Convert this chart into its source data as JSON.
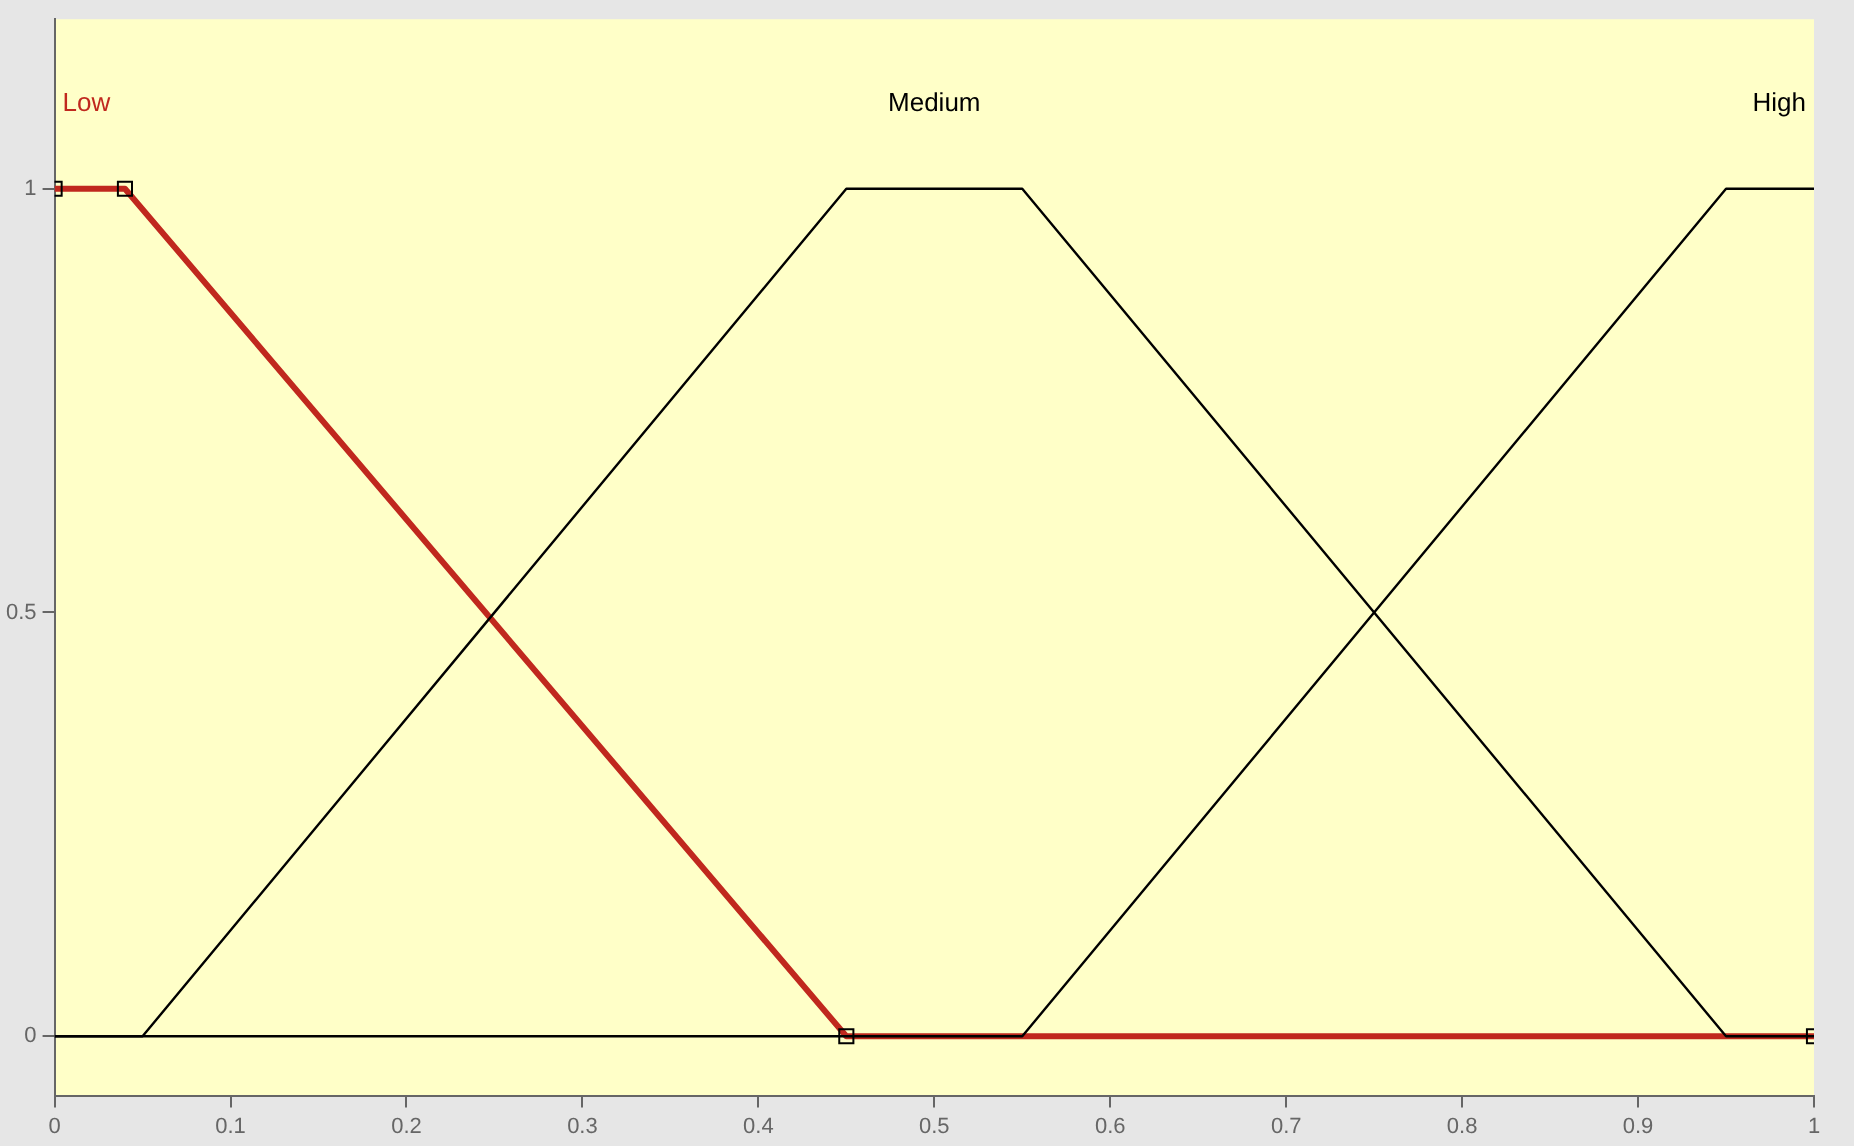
{
  "chart_data": {
    "type": "line",
    "xlim": [
      0,
      1
    ],
    "ylim": [
      -0.07,
      1.2
    ],
    "xticks": [
      0,
      0.1,
      0.2,
      0.3,
      0.4,
      0.5,
      0.6,
      0.7,
      0.8,
      0.9,
      1
    ],
    "yticks": [
      0,
      0.5,
      1
    ],
    "series": [
      {
        "name": "Low",
        "color": "#c0281e",
        "x": [
          0,
          0.04,
          0.45,
          1
        ],
        "values": [
          1,
          1,
          0,
          0
        ],
        "marker": "square"
      },
      {
        "name": "Medium",
        "color": "#000000",
        "x": [
          0,
          0.05,
          0.45,
          0.55,
          0.95,
          1
        ],
        "values": [
          0,
          0,
          1,
          1,
          0,
          0
        ]
      },
      {
        "name": "High",
        "color": "#000000",
        "x": [
          0,
          0.55,
          0.95,
          1
        ],
        "values": [
          0,
          0,
          1,
          1
        ]
      }
    ]
  }
}
